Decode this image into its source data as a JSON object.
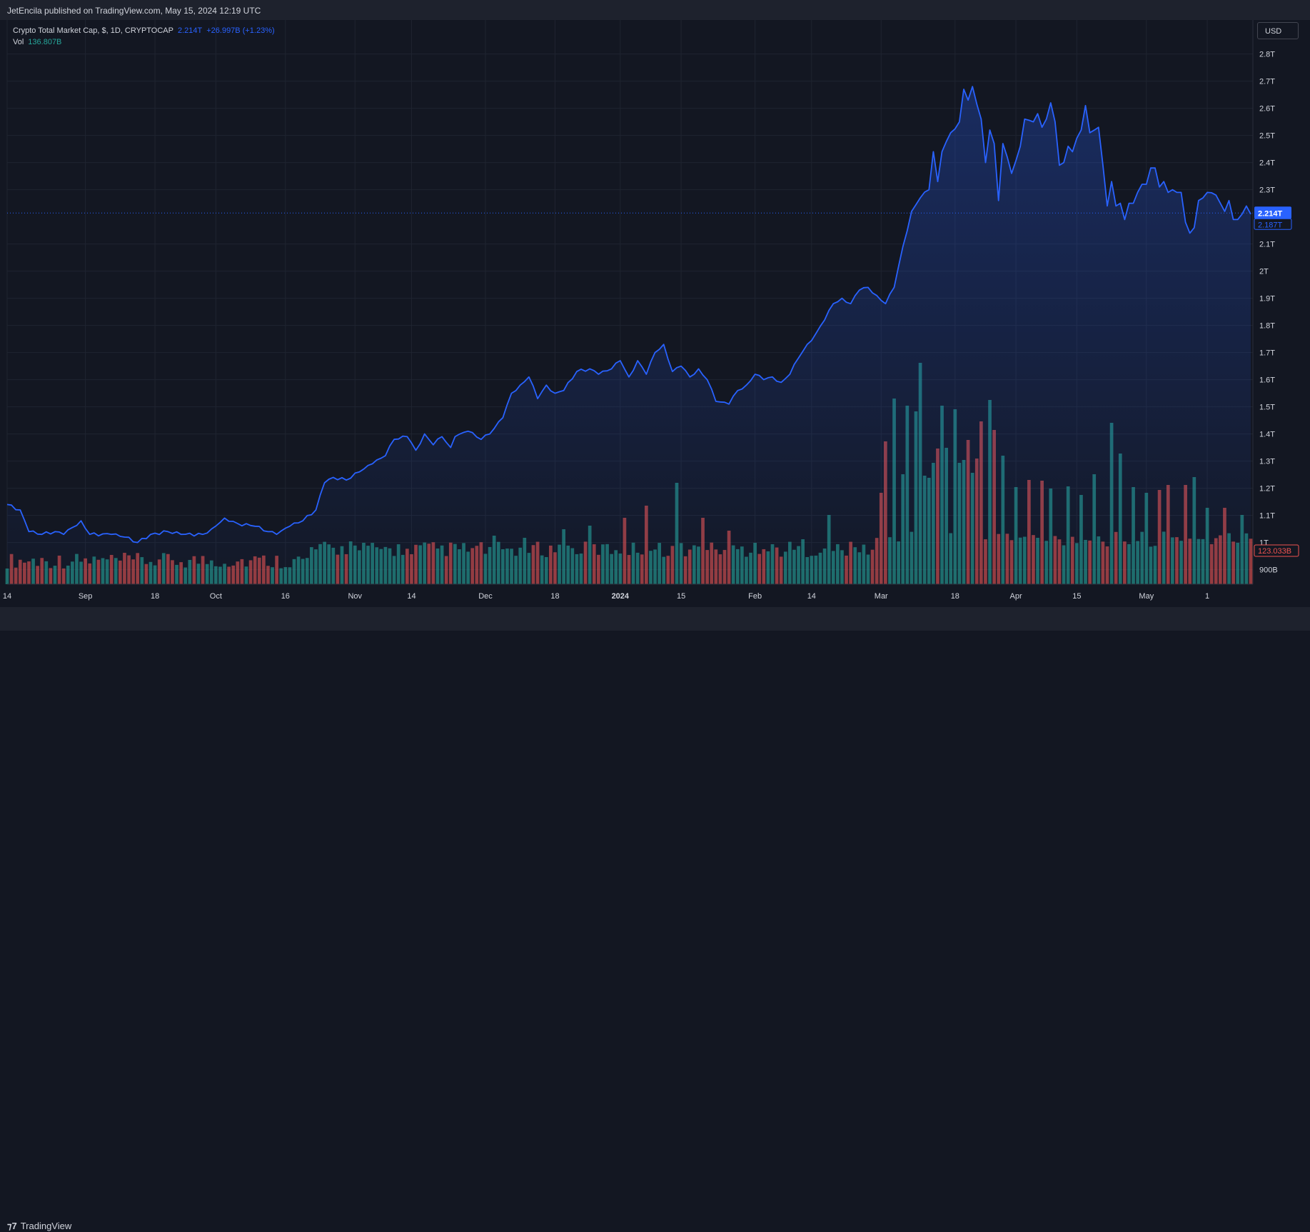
{
  "header": {
    "published": "JetEncila published on TradingView.com, May 15, 2024 12:19 UTC"
  },
  "legend": {
    "symbol": "Crypto Total Market Cap, $, 1D, CRYPTOCAP",
    "last": "2.214T",
    "change": "+26.997B (+1.23%)",
    "vol_label": "Vol",
    "vol_value": "136.807B"
  },
  "currency_button": "USD",
  "footer": {
    "brand": "TradingView"
  },
  "colors": {
    "line": "#2962ff",
    "up_volume": "#26a69a",
    "down_volume": "#ef5350",
    "background": "#131722"
  },
  "chart_data": {
    "type": "area",
    "title": "Crypto Total Market Cap",
    "price_axis": {
      "unit": "T",
      "ylim": [
        0.82,
        2.87
      ],
      "ticks": [
        {
          "value": 2.8,
          "label": "2.8T"
        },
        {
          "value": 2.7,
          "label": "2.7T"
        },
        {
          "value": 2.6,
          "label": "2.6T"
        },
        {
          "value": 2.5,
          "label": "2.5T"
        },
        {
          "value": 2.4,
          "label": "2.4T"
        },
        {
          "value": 2.3,
          "label": "2.3T"
        },
        {
          "value": 2.1,
          "label": "2.1T"
        },
        {
          "value": 2.0,
          "label": "2T"
        },
        {
          "value": 1.9,
          "label": "1.9T"
        },
        {
          "value": 1.8,
          "label": "1.8T"
        },
        {
          "value": 1.7,
          "label": "1.7T"
        },
        {
          "value": 1.6,
          "label": "1.6T"
        },
        {
          "value": 1.5,
          "label": "1.5T"
        },
        {
          "value": 1.4,
          "label": "1.4T"
        },
        {
          "value": 1.3,
          "label": "1.3T"
        },
        {
          "value": 1.2,
          "label": "1.2T"
        },
        {
          "value": 1.1,
          "label": "1.1T"
        },
        {
          "value": 1.0,
          "label": "1T"
        },
        {
          "value": 0.9,
          "label": "900B"
        }
      ]
    },
    "x_axis": {
      "ticks": [
        {
          "index": 0,
          "label": "14"
        },
        {
          "index": 18,
          "label": "Sep"
        },
        {
          "index": 34,
          "label": "18"
        },
        {
          "index": 48,
          "label": "Oct"
        },
        {
          "index": 64,
          "label": "16"
        },
        {
          "index": 80,
          "label": "Nov"
        },
        {
          "index": 93,
          "label": "14"
        },
        {
          "index": 110,
          "label": "Dec"
        },
        {
          "index": 126,
          "label": "18"
        },
        {
          "index": 141,
          "label": "2024"
        },
        {
          "index": 155,
          "label": "15"
        },
        {
          "index": 172,
          "label": "Feb"
        },
        {
          "index": 185,
          "label": "14"
        },
        {
          "index": 201,
          "label": "Mar"
        },
        {
          "index": 218,
          "label": "18"
        },
        {
          "index": 232,
          "label": "Apr"
        },
        {
          "index": 246,
          "label": "15"
        },
        {
          "index": 262,
          "label": "May"
        },
        {
          "index": 276,
          "label": "1"
        }
      ]
    },
    "price_labels": [
      {
        "value": 2.214,
        "label": "2.214T",
        "style": "filled"
      },
      {
        "value": 2.187,
        "label": "2.187T",
        "style": "outline"
      }
    ],
    "volume_label": "123.033B",
    "anchors": [
      [
        0,
        1.14
      ],
      [
        3,
        1.12
      ],
      [
        5,
        1.04
      ],
      [
        8,
        1.03
      ],
      [
        11,
        1.04
      ],
      [
        13,
        1.03
      ],
      [
        17,
        1.08
      ],
      [
        19,
        1.03
      ],
      [
        24,
        1.03
      ],
      [
        27,
        1.02
      ],
      [
        30,
        1.0
      ],
      [
        33,
        1.03
      ],
      [
        37,
        1.04
      ],
      [
        40,
        1.03
      ],
      [
        45,
        1.03
      ],
      [
        47,
        1.05
      ],
      [
        50,
        1.09
      ],
      [
        53,
        1.07
      ],
      [
        57,
        1.06
      ],
      [
        60,
        1.04
      ],
      [
        62,
        1.03
      ],
      [
        65,
        1.06
      ],
      [
        68,
        1.08
      ],
      [
        71,
        1.12
      ],
      [
        73,
        1.22
      ],
      [
        75,
        1.24
      ],
      [
        78,
        1.23
      ],
      [
        81,
        1.26
      ],
      [
        84,
        1.29
      ],
      [
        87,
        1.32
      ],
      [
        89,
        1.38
      ],
      [
        92,
        1.39
      ],
      [
        94,
        1.34
      ],
      [
        96,
        1.4
      ],
      [
        98,
        1.36
      ],
      [
        100,
        1.39
      ],
      [
        102,
        1.35
      ],
      [
        103,
        1.39
      ],
      [
        106,
        1.41
      ],
      [
        109,
        1.38
      ],
      [
        111,
        1.4
      ],
      [
        114,
        1.46
      ],
      [
        116,
        1.55
      ],
      [
        118,
        1.58
      ],
      [
        120,
        1.61
      ],
      [
        122,
        1.53
      ],
      [
        124,
        1.58
      ],
      [
        126,
        1.55
      ],
      [
        128,
        1.56
      ],
      [
        131,
        1.63
      ],
      [
        134,
        1.64
      ],
      [
        136,
        1.62
      ],
      [
        139,
        1.64
      ],
      [
        141,
        1.67
      ],
      [
        143,
        1.61
      ],
      [
        145,
        1.67
      ],
      [
        147,
        1.62
      ],
      [
        149,
        1.7
      ],
      [
        151,
        1.73
      ],
      [
        153,
        1.63
      ],
      [
        155,
        1.65
      ],
      [
        157,
        1.61
      ],
      [
        159,
        1.64
      ],
      [
        161,
        1.6
      ],
      [
        163,
        1.52
      ],
      [
        166,
        1.51
      ],
      [
        168,
        1.56
      ],
      [
        170,
        1.58
      ],
      [
        172,
        1.62
      ],
      [
        174,
        1.6
      ],
      [
        176,
        1.61
      ],
      [
        178,
        1.59
      ],
      [
        180,
        1.62
      ],
      [
        182,
        1.68
      ],
      [
        184,
        1.73
      ],
      [
        186,
        1.77
      ],
      [
        188,
        1.82
      ],
      [
        190,
        1.88
      ],
      [
        192,
        1.9
      ],
      [
        194,
        1.88
      ],
      [
        196,
        1.93
      ],
      [
        198,
        1.94
      ],
      [
        200,
        1.91
      ],
      [
        202,
        1.88
      ],
      [
        204,
        1.94
      ],
      [
        206,
        2.09
      ],
      [
        208,
        2.22
      ],
      [
        210,
        2.27
      ],
      [
        212,
        2.3
      ],
      [
        213,
        2.44
      ],
      [
        214,
        2.33
      ],
      [
        215,
        2.44
      ],
      [
        217,
        2.51
      ],
      [
        219,
        2.55
      ],
      [
        220,
        2.67
      ],
      [
        221,
        2.63
      ],
      [
        222,
        2.68
      ],
      [
        224,
        2.56
      ],
      [
        225,
        2.4
      ],
      [
        226,
        2.52
      ],
      [
        227,
        2.47
      ],
      [
        228,
        2.26
      ],
      [
        229,
        2.47
      ],
      [
        231,
        2.36
      ],
      [
        233,
        2.46
      ],
      [
        234,
        2.56
      ],
      [
        236,
        2.55
      ],
      [
        237,
        2.58
      ],
      [
        238,
        2.53
      ],
      [
        239,
        2.56
      ],
      [
        240,
        2.62
      ],
      [
        241,
        2.55
      ],
      [
        242,
        2.39
      ],
      [
        243,
        2.4
      ],
      [
        244,
        2.46
      ],
      [
        245,
        2.44
      ],
      [
        246,
        2.49
      ],
      [
        247,
        2.52
      ],
      [
        248,
        2.61
      ],
      [
        249,
        2.51
      ],
      [
        251,
        2.53
      ],
      [
        253,
        2.24
      ],
      [
        254,
        2.33
      ],
      [
        255,
        2.24
      ],
      [
        256,
        2.25
      ],
      [
        257,
        2.19
      ],
      [
        258,
        2.25
      ],
      [
        259,
        2.25
      ],
      [
        261,
        2.32
      ],
      [
        262,
        2.32
      ],
      [
        263,
        2.38
      ],
      [
        264,
        2.38
      ],
      [
        265,
        2.31
      ],
      [
        266,
        2.33
      ],
      [
        267,
        2.29
      ],
      [
        268,
        2.3
      ],
      [
        269,
        2.29
      ],
      [
        270,
        2.29
      ],
      [
        271,
        2.18
      ],
      [
        272,
        2.14
      ],
      [
        273,
        2.16
      ],
      [
        274,
        2.26
      ],
      [
        276,
        2.29
      ],
      [
        278,
        2.28
      ],
      [
        279,
        2.25
      ],
      [
        280,
        2.22
      ],
      [
        281,
        2.26
      ],
      [
        282,
        2.19
      ],
      [
        283,
        2.19
      ],
      [
        284,
        2.21
      ],
      [
        285,
        2.24
      ],
      [
        286,
        2.21
      ]
    ],
    "volume": {
      "unit": "B",
      "spikes": [
        [
          79,
          60
        ],
        [
          93,
          42
        ],
        [
          99,
          50
        ],
        [
          112,
          68
        ],
        [
          119,
          65
        ],
        [
          128,
          77
        ],
        [
          134,
          82
        ],
        [
          142,
          93
        ],
        [
          147,
          110
        ],
        [
          154,
          142
        ],
        [
          160,
          93
        ],
        [
          166,
          75
        ],
        [
          172,
          58
        ],
        [
          183,
          63
        ],
        [
          189,
          97
        ],
        [
          201,
          128
        ],
        [
          202,
          200
        ],
        [
          204,
          260
        ],
        [
          206,
          154
        ],
        [
          207,
          250
        ],
        [
          209,
          242
        ],
        [
          210,
          310
        ],
        [
          211,
          152
        ],
        [
          212,
          149
        ],
        [
          213,
          170
        ],
        [
          214,
          190
        ],
        [
          215,
          250
        ],
        [
          216,
          191
        ],
        [
          218,
          245
        ],
        [
          219,
          170
        ],
        [
          220,
          174
        ],
        [
          221,
          202
        ],
        [
          222,
          156
        ],
        [
          223,
          176
        ],
        [
          224,
          228
        ],
        [
          226,
          258
        ],
        [
          227,
          216
        ],
        [
          229,
          180
        ],
        [
          232,
          136
        ],
        [
          235,
          146
        ],
        [
          238,
          145
        ],
        [
          240,
          134
        ],
        [
          244,
          137
        ],
        [
          247,
          125
        ],
        [
          250,
          154
        ],
        [
          254,
          226
        ],
        [
          256,
          183
        ],
        [
          259,
          136
        ],
        [
          262,
          128
        ],
        [
          265,
          132
        ],
        [
          267,
          139
        ],
        [
          271,
          139
        ],
        [
          273,
          150
        ],
        [
          276,
          107
        ],
        [
          280,
          107
        ],
        [
          284,
          97
        ]
      ],
      "base": 22
    }
  }
}
